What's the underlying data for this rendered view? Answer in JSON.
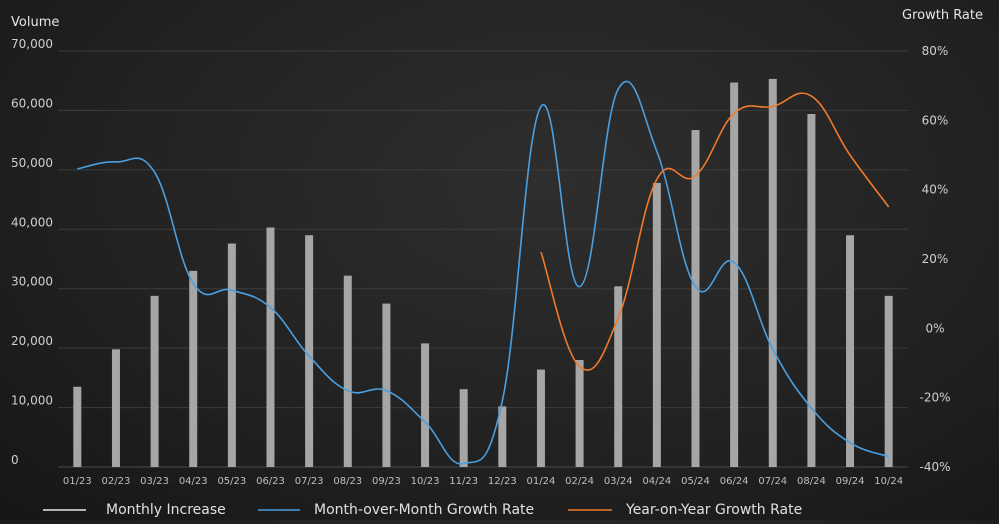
{
  "chart_data": {
    "type": "bar",
    "title": "",
    "left_axis": {
      "label": "Volume",
      "ylim": [
        0,
        70000
      ],
      "ticks": [
        "0",
        "10,000",
        "20,000",
        "30,000",
        "40,000",
        "50,000",
        "60,000",
        "70,000"
      ]
    },
    "right_axis": {
      "label": "Growth Rate",
      "ylim": [
        -40,
        80
      ],
      "ticks": [
        "-40%",
        "-20%",
        "0%",
        "20%",
        "40%",
        "60%",
        "80%"
      ]
    },
    "grid": true,
    "legend_position": "bottom",
    "categories": [
      "01/23",
      "02/23",
      "03/23",
      "04/23",
      "05/23",
      "06/23",
      "07/23",
      "08/23",
      "09/23",
      "10/23",
      "11/23",
      "12/23",
      "01/24",
      "02/24",
      "03/24",
      "04/24",
      "05/24",
      "06/24",
      "07/24",
      "08/24",
      "09/24",
      "10/24"
    ],
    "series": [
      {
        "name": "Monthly Increase",
        "type": "bar",
        "axis": "left",
        "color": "#a6a6a6",
        "values": [
          13500,
          19800,
          28800,
          33000,
          37600,
          40300,
          39000,
          32200,
          27500,
          20800,
          13100,
          10200,
          16400,
          18000,
          30400,
          47800,
          56700,
          64700,
          65300,
          59400,
          39000,
          28800
        ]
      },
      {
        "name": "Month-over-Month Growth Rate",
        "type": "line",
        "axis": "right",
        "color": "#4a9fe0",
        "values": [
          46,
          48,
          45,
          13,
          11,
          6,
          -8,
          -18,
          -18,
          -27,
          -39,
          -21,
          64,
          12,
          69,
          51,
          12,
          19,
          -6,
          -23,
          -33,
          -37
        ]
      },
      {
        "name": "Year-on-Year Growth Rate",
        "type": "line",
        "axis": "right",
        "color": "#f07a2c",
        "values": [
          null,
          null,
          null,
          null,
          null,
          null,
          null,
          null,
          null,
          null,
          null,
          null,
          22,
          -11,
          3,
          43,
          44,
          62,
          64,
          67,
          50,
          35
        ]
      }
    ]
  }
}
